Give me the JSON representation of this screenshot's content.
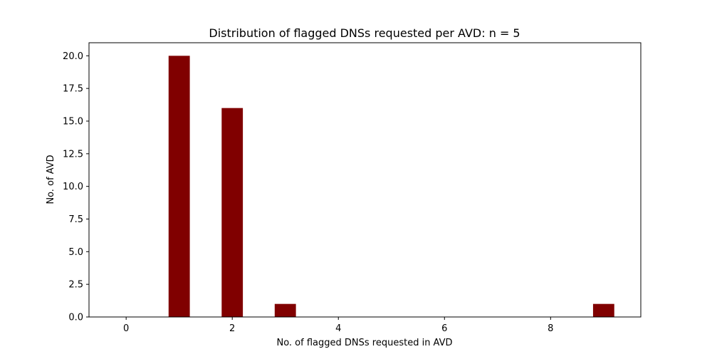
{
  "chart_data": {
    "type": "bar",
    "title": "Distribution of flagged DNSs requested per AVD: n = 5",
    "xlabel": "No. of flagged DNSs requested in AVD",
    "ylabel": "No. of AVD",
    "x": [
      1,
      2,
      3,
      9
    ],
    "values": [
      20,
      16,
      1,
      1
    ],
    "bar_width": 0.4,
    "xlim": [
      -0.7,
      9.7
    ],
    "ylim": [
      0,
      21
    ],
    "xticks": [
      0,
      2,
      4,
      6,
      8
    ],
    "xtick_labels": [
      "0",
      "2",
      "4",
      "6",
      "8"
    ],
    "yticks": [
      0,
      2.5,
      5,
      7.5,
      10,
      12.5,
      15,
      17.5,
      20
    ],
    "ytick_labels": [
      "0.0",
      "2.5",
      "5.0",
      "7.5",
      "10.0",
      "12.5",
      "15.0",
      "17.5",
      "20.0"
    ],
    "bar_color": "#800000",
    "grid": false,
    "legend": "none"
  }
}
